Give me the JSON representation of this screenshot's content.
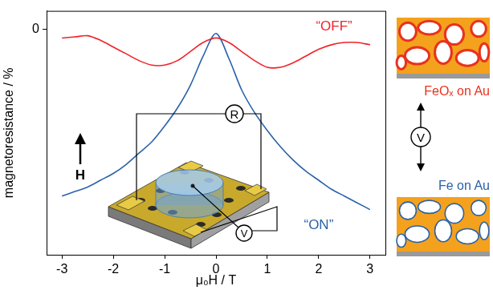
{
  "chart_data": {
    "type": "line",
    "x_label": "μ₀H / T",
    "y_label": "magnetoresistance / %",
    "x": [
      -3,
      -2.75,
      -2.5,
      -2.25,
      -2,
      -1.75,
      -1.5,
      -1.25,
      -1,
      -0.75,
      -0.5,
      -0.25,
      0,
      0.25,
      0.5,
      0.75,
      1,
      1.25,
      1.5,
      1.75,
      2,
      2.25,
      2.5,
      2.75,
      3
    ],
    "series": [
      {
        "color": "#f0222a",
        "line_style": "solid",
        "values": [
          -0.04,
          -0.035,
          -0.03,
          -0.05,
          -0.08,
          -0.11,
          -0.14,
          -0.16,
          -0.16,
          -0.14,
          -0.1,
          -0.06,
          -0.04,
          -0.06,
          -0.1,
          -0.14,
          -0.17,
          -0.17,
          -0.15,
          -0.12,
          -0.09,
          -0.07,
          -0.06,
          -0.06,
          -0.07
        ]
      },
      {
        "color": "#2a62a8",
        "line_style": "solid",
        "values": [
          -0.74,
          -0.72,
          -0.7,
          -0.67,
          -0.64,
          -0.6,
          -0.55,
          -0.5,
          -0.43,
          -0.35,
          -0.25,
          -0.12,
          -0.02,
          -0.13,
          -0.27,
          -0.37,
          -0.45,
          -0.52,
          -0.58,
          -0.63,
          -0.67,
          -0.71,
          -0.74,
          -0.77,
          -0.8
        ]
      }
    ],
    "annotations": [
      {
        "text": "“OFF”",
        "x": 2.3,
        "y": 0.01,
        "color": "#f0222a"
      },
      {
        "text": "“ON”",
        "x": 2.0,
        "y": -0.87,
        "color": "#2a62a8"
      }
    ],
    "xlim": [
      -3.3,
      3.3
    ],
    "xticks": [
      -3,
      -2,
      -1,
      0,
      1,
      2,
      3
    ],
    "ylim": [
      -1.0,
      0.08
    ],
    "yticks": [
      0
    ],
    "grid": false
  },
  "diagram": {
    "inset": {
      "resistance": "R",
      "voltage": "V",
      "field": "H"
    },
    "switch": {
      "voltage": "V",
      "top_label": "FeOₓ on Au",
      "top_color": "#e8321e",
      "bottom_label": "Fe on Au",
      "bottom_color": "#2a62a8"
    }
  }
}
